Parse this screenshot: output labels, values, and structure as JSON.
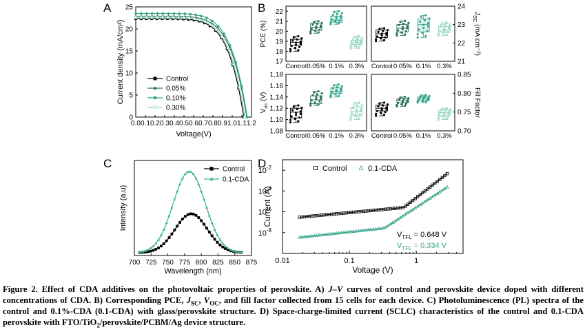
{
  "panels": {
    "a": "A",
    "b": "B",
    "c": "C",
    "d": "D"
  },
  "colors": {
    "control": "#000000",
    "c005": "#2a6f5c",
    "c010": "#34a48a",
    "c030": "#8fd2c1",
    "pl_cda": "#40b39a"
  },
  "chart_data": [
    {
      "id": "A",
      "type": "line",
      "xlabel": "Voltage(V)",
      "ylabel": "Current density (mA/cm²)",
      "xlim": [
        0.0,
        1.2
      ],
      "ylim": [
        0,
        25
      ],
      "xticks": [
        "0.0",
        "0.1",
        "0.2",
        "0.3",
        "0.4",
        "0.5",
        "0.6",
        "0.7",
        "0.8",
        "0.9",
        "1.0",
        "1.1",
        "1.2"
      ],
      "yticks": [
        "0",
        "5",
        "10",
        "15",
        "20",
        "25"
      ],
      "legend": "lower-left",
      "series": [
        {
          "name": "Control",
          "jsc": 22.3,
          "voc": 1.12,
          "marker": "square",
          "color": "#000000"
        },
        {
          "name": "0.05%",
          "jsc": 22.9,
          "voc": 1.15,
          "marker": "triangle",
          "color": "#2a6f5c"
        },
        {
          "name": "0.10%",
          "jsc": 23.5,
          "voc": 1.155,
          "marker": "circle",
          "color": "#34a48a"
        },
        {
          "name": "0.30%",
          "jsc": 22.6,
          "voc": 1.13,
          "marker": "circle-open",
          "color": "#8fd2c1"
        }
      ]
    },
    {
      "id": "B",
      "type": "box",
      "categories": [
        "Control",
        "0.05%",
        "0.1%",
        "0.3%"
      ],
      "subplots": [
        {
          "ylabel": "PCE (%)",
          "side": "left",
          "ylim": [
            17,
            22.5
          ],
          "yticks": [
            "17",
            "18",
            "19",
            "20",
            "21",
            "22"
          ],
          "boxes": [
            {
              "q1": 18.6,
              "median": 18.9,
              "q3": 19.2,
              "min": 18.0,
              "max": 19.5
            },
            {
              "q1": 20.1,
              "median": 20.4,
              "q3": 20.8,
              "min": 19.8,
              "max": 21.0
            },
            {
              "q1": 20.9,
              "median": 21.1,
              "q3": 21.5,
              "min": 20.7,
              "max": 22.0
            },
            {
              "q1": 18.7,
              "median": 18.9,
              "q3": 19.1,
              "min": 18.3,
              "max": 19.5
            }
          ]
        },
        {
          "ylabel": "J_SC (mA cm⁻²)",
          "side": "right",
          "ylim": [
            21,
            24
          ],
          "yticks": [
            "21",
            "22",
            "23",
            "24"
          ],
          "boxes": [
            {
              "q1": 22.3,
              "median": 22.5,
              "q3": 22.7,
              "min": 22.1,
              "max": 22.8
            },
            {
              "q1": 22.6,
              "median": 22.8,
              "q3": 23.0,
              "min": 22.4,
              "max": 23.2
            },
            {
              "q1": 22.6,
              "median": 23.0,
              "q3": 23.3,
              "min": 22.3,
              "max": 23.5
            },
            {
              "q1": 22.6,
              "median": 22.7,
              "q3": 22.9,
              "min": 22.4,
              "max": 23.1
            }
          ]
        },
        {
          "ylabel": "V_oc (V)",
          "side": "left",
          "ylim": [
            1.08,
            1.18
          ],
          "yticks": [
            "1.08",
            "1.10",
            "1.12",
            "1.14",
            "1.16",
            "1.18"
          ],
          "boxes": [
            {
              "q1": 1.103,
              "median": 1.113,
              "q3": 1.12,
              "min": 1.095,
              "max": 1.125
            },
            {
              "q1": 1.128,
              "median": 1.135,
              "q3": 1.142,
              "min": 1.125,
              "max": 1.15
            },
            {
              "q1": 1.146,
              "median": 1.15,
              "q3": 1.156,
              "min": 1.14,
              "max": 1.162
            },
            {
              "q1": 1.108,
              "median": 1.115,
              "q3": 1.122,
              "min": 1.1,
              "max": 1.13
            }
          ]
        },
        {
          "ylabel": "Fill Factor",
          "side": "right",
          "ylim": [
            0.7,
            0.85
          ],
          "yticks": [
            "0.70",
            "0.75",
            "0.80",
            "0.85"
          ],
          "boxes": [
            {
              "q1": 0.753,
              "median": 0.76,
              "q3": 0.768,
              "min": 0.74,
              "max": 0.775
            },
            {
              "q1": 0.775,
              "median": 0.78,
              "q3": 0.785,
              "min": 0.765,
              "max": 0.79
            },
            {
              "q1": 0.78,
              "median": 0.785,
              "q3": 0.79,
              "min": 0.775,
              "max": 0.795
            },
            {
              "q1": 0.74,
              "median": 0.748,
              "q3": 0.755,
              "min": 0.73,
              "max": 0.76
            }
          ]
        }
      ]
    },
    {
      "id": "C",
      "type": "line",
      "xlabel": "Wavelength (nm)",
      "ylabel": "Intensity (a.u)",
      "xlim": [
        700,
        875
      ],
      "xticks": [
        "700",
        "725",
        "750",
        "775",
        "800",
        "825",
        "850",
        "875"
      ],
      "legend": "top-right",
      "series": [
        {
          "name": "Control",
          "peak_nm": 785,
          "peak": 0.48,
          "marker": "square",
          "color": "#000000"
        },
        {
          "name": "0.1-CDA",
          "peak_nm": 782,
          "peak": 1.0,
          "marker": "triangle",
          "color": "#40b39a"
        }
      ]
    },
    {
      "id": "D",
      "type": "scatter",
      "xscale": "log",
      "yscale": "log",
      "xlabel": "Voltage (V)",
      "ylabel": "Current (A)",
      "xlim": [
        0.01,
        5
      ],
      "ylim": [
        1e-10,
        0.1
      ],
      "xticks": [
        "0.01",
        "0.1",
        "1"
      ],
      "legend": "top",
      "series": [
        {
          "name": "Control",
          "marker": "square-open",
          "color": "#000000",
          "vtfl": 0.648
        },
        {
          "name": "0.1-CDA",
          "marker": "triangle-open",
          "color": "#34a48a",
          "vtfl": 0.334
        }
      ],
      "annotations": [
        {
          "base": "V",
          "sub": "TFL",
          "text": " = 0.648 V",
          "color": "#000000"
        },
        {
          "base": "V",
          "sub": "TFL",
          "text": " = 0.334 V",
          "color": "#34a48a"
        }
      ]
    }
  ],
  "caption": {
    "p1": "Figure 2. Effect of CDA additives on the photovoltaic properties of perovskite. A) ",
    "p2": "J–V",
    "p3": " curves of control and perovskite device doped with different concentrations of CDA. B) Corresponding PCE, ",
    "jsc_base": "J",
    "jsc_sub": "SC",
    "p4": ", ",
    "voc_base": "V",
    "voc_sub": "OC",
    "p5": ", and fill factor collected from 15 cells for each device. C) Photoluminescence (PL) spectra of the control and 0.1%-CDA (0.1-CDA) with glass/perovskite structure. D) Space-charge-limited current (SCLC) characteristics of the control and 0.1-CDA perovskite with FTO/TiO",
    "tio_sub": "2",
    "p6": "/perovskite/PCBM/Ag device structure."
  }
}
